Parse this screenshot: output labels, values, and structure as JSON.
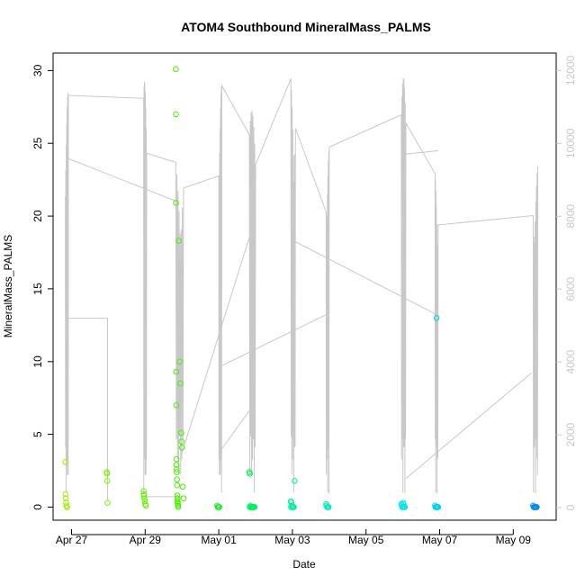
{
  "chart_data": {
    "type": "scatter",
    "title": "ATOM4 Southbound MineralMass_PALMS",
    "xlabel": "Date",
    "ylabel": "MineralMass_PALMS",
    "x_ticks": [
      "Apr 27",
      "Apr 29",
      "May 01",
      "May 03",
      "May 05",
      "May 07",
      "May 09"
    ],
    "y_ticks": [
      "0",
      "5",
      "10",
      "15",
      "20",
      "25",
      "30"
    ],
    "y2_ticks": [
      "0",
      "2000",
      "4000",
      "6000",
      "8000",
      "10000",
      "12000"
    ],
    "xlim": [
      "Apr 26 12:00",
      "May 10 04:00"
    ],
    "ylim": [
      -0.9,
      31.2
    ],
    "y2lim": [
      -345,
      12480
    ],
    "grid": false,
    "x": [
      "Apr 26 20:00",
      "Apr 26 20:10",
      "Apr 26 20:20",
      "Apr 26 20:30",
      "Apr 26 20:40",
      "Apr 26 21:00",
      "Apr 26 21:10",
      "Apr 27 23:00",
      "Apr 27 23:10",
      "Apr 27 23:20",
      "Apr 27 23:30",
      "Apr 28 23:00",
      "Apr 28 23:10",
      "Apr 28 23:20",
      "Apr 28 23:30",
      "Apr 28 23:50",
      "Apr 29 00:10",
      "Apr 29 00:30",
      "Apr 29 20:00",
      "Apr 29 20:05",
      "Apr 29 20:10",
      "Apr 29 20:15",
      "Apr 29 20:20",
      "Apr 29 20:25",
      "Apr 29 20:30",
      "Apr 29 20:35",
      "Apr 29 20:40",
      "Apr 29 20:45",
      "Apr 29 20:50",
      "Apr 29 21:00",
      "Apr 29 21:05",
      "Apr 29 21:10",
      "Apr 29 21:15",
      "Apr 29 21:20",
      "Apr 29 21:25",
      "Apr 29 21:30",
      "Apr 29 22:00",
      "Apr 29 22:30",
      "Apr 29 23:00",
      "Apr 29 23:30",
      "Apr 29 23:45",
      "Apr 30 00:00",
      "Apr 30 00:30",
      "Apr 30 01:00",
      "Apr 30 23:00",
      "Apr 30 23:20",
      "Apr 30 23:40",
      "May 01 00:00",
      "May 01 00:20",
      "May 01 20:00",
      "May 01 20:20",
      "May 01 20:40",
      "May 01 21:00",
      "May 01 21:20",
      "May 01 21:40",
      "May 01 22:00",
      "May 01 22:20",
      "May 01 22:40",
      "May 01 23:00",
      "May 01 23:20",
      "May 01 20:10",
      "May 02 23:00",
      "May 02 23:20",
      "May 02 23:40",
      "May 03 00:00",
      "May 03 00:20",
      "May 03 00:40",
      "May 03 01:00",
      "May 02 23:10",
      "May 03 01:30",
      "May 03 22:00",
      "May 03 22:20",
      "May 03 22:40",
      "May 03 23:00",
      "May 03 23:20",
      "May 03 23:40",
      "May 03 23:10",
      "May 05 23:00",
      "May 05 23:20",
      "May 05 23:40",
      "May 06 00:00",
      "May 06 00:20",
      "May 06 00:40",
      "May 06 01:00",
      "May 06 01:20",
      "May 06 00:10",
      "May 06 00:30",
      "May 06 21:00",
      "May 06 21:20",
      "May 06 21:40",
      "May 06 22:00",
      "May 06 22:20",
      "May 06 22:40",
      "May 06 23:00",
      "May 06 22:00",
      "May 09 13:00",
      "May 09 13:20",
      "May 09 13:40",
      "May 09 14:00",
      "May 09 14:20",
      "May 09 14:40",
      "May 09 15:00",
      "May 09 15:20"
    ],
    "y": [
      3.1,
      0.9,
      0.6,
      0.3,
      0.1,
      0,
      0,
      2.4,
      2.3,
      1.8,
      0.3,
      1.1,
      0.9,
      0.8,
      0.6,
      0.4,
      0.2,
      0.1,
      30.1,
      27,
      20.9,
      9.3,
      7,
      3.3,
      2.9,
      2.6,
      2.4,
      1.9,
      1.5,
      0.8,
      0.6,
      0.4,
      0.3,
      0.2,
      0.1,
      0,
      18.3,
      10,
      8.5,
      5.1,
      4.5,
      4.1,
      1.4,
      0.6,
      0.1,
      0,
      0,
      0,
      0,
      2.4,
      2.3,
      0.1,
      0,
      0,
      0,
      0,
      0,
      0,
      0,
      0,
      0,
      0.4,
      0.3,
      0.1,
      0,
      0,
      0,
      0,
      0,
      1.8,
      0.2,
      0.1,
      0,
      0,
      0,
      0,
      0,
      0.2,
      0.1,
      0,
      0,
      0,
      0,
      0,
      0,
      0.3,
      0.2,
      0.1,
      0,
      0,
      0,
      0,
      0,
      0,
      13,
      0.1,
      0,
      0,
      0,
      0,
      0,
      0,
      0
    ],
    "secondary_series_label": ""
  }
}
